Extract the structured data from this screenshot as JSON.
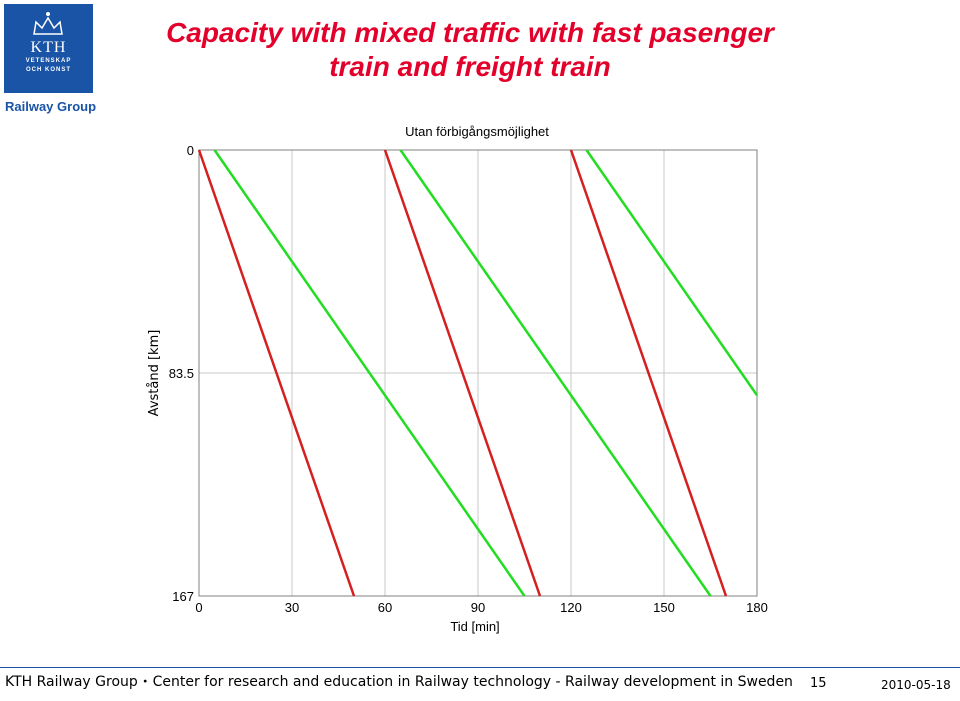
{
  "header": {
    "logo": {
      "kth": "KTH",
      "line2": "VETENSKAP",
      "line3": "OCH KONST"
    },
    "group_label": "Railway Group",
    "title": "Capacity with mixed traffic with fast pasenger\ntrain and freight train"
  },
  "chart_data": {
    "type": "line",
    "title": "Utan förbigångsmöjlighet",
    "xlabel": "Tid [min]",
    "ylabel": "Avstånd [km]",
    "xlim": [
      0,
      180
    ],
    "ylim": [
      0,
      167
    ],
    "y_inverted": true,
    "grid": true,
    "xticks": [
      0,
      30,
      60,
      90,
      120,
      150,
      180
    ],
    "xtick_labels": [
      "0",
      "30",
      "60",
      "90",
      "120",
      "150",
      "180"
    ],
    "yticks": [
      0,
      83.5,
      167
    ],
    "ytick_labels": [
      "0",
      "83.5",
      "167"
    ],
    "series": [
      {
        "color": "#d42020",
        "x": [
          0,
          50
        ],
        "y": [
          0,
          167
        ]
      },
      {
        "color": "#d42020",
        "x": [
          60,
          110
        ],
        "y": [
          0,
          167
        ]
      },
      {
        "color": "#d42020",
        "x": [
          120,
          170
        ],
        "y": [
          0,
          167
        ]
      },
      {
        "color": "#22dd22",
        "x": [
          5,
          105
        ],
        "y": [
          0,
          167
        ]
      },
      {
        "color": "#22dd22",
        "x": [
          65,
          165
        ],
        "y": [
          0,
          167
        ]
      },
      {
        "color": "#22dd22",
        "x": [
          125,
          180
        ],
        "y": [
          0,
          91.85
        ]
      }
    ]
  },
  "footer": {
    "text_left": "KTH Railway Group",
    "bullet": "•",
    "text_right": "Center for research and education in Railway technology - Railway development in Sweden",
    "page": "15",
    "date": "2010-05-18"
  },
  "colors": {
    "brand_blue": "#1954a6",
    "title_red": "#e3002b"
  }
}
